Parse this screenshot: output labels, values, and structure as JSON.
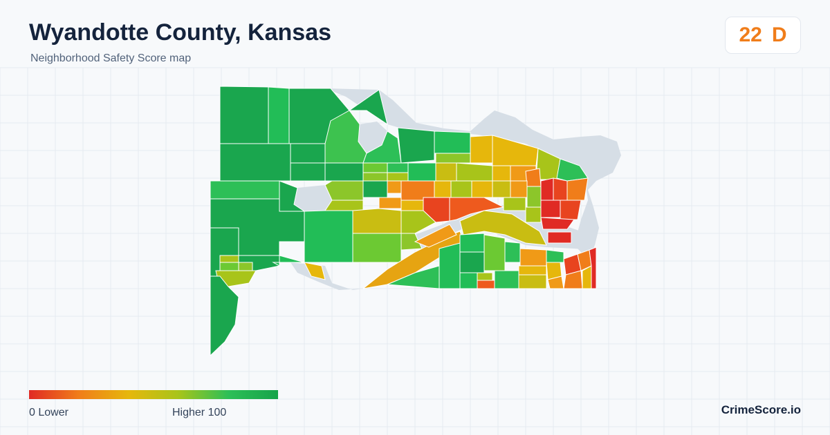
{
  "header": {
    "title": "Wyandotte County, Kansas",
    "subtitle": "Neighborhood Safety Score map"
  },
  "score_badge": {
    "score": "22",
    "grade": "D",
    "color": "#f07d1a"
  },
  "legend": {
    "min_label": "0  Lower",
    "max_label": "Higher  100",
    "colors": [
      "#e02a24",
      "#f07d1a",
      "#e6b70c",
      "#a8c41a",
      "#2dbf57",
      "#16a34a"
    ]
  },
  "footer": {
    "brand": "CrimeScore.io"
  },
  "map": {
    "water_color": "#d6dee6",
    "border_color": "#ffffff",
    "score_scale": "0 = red (lower safety), 100 = green (higher safety)"
  }
}
